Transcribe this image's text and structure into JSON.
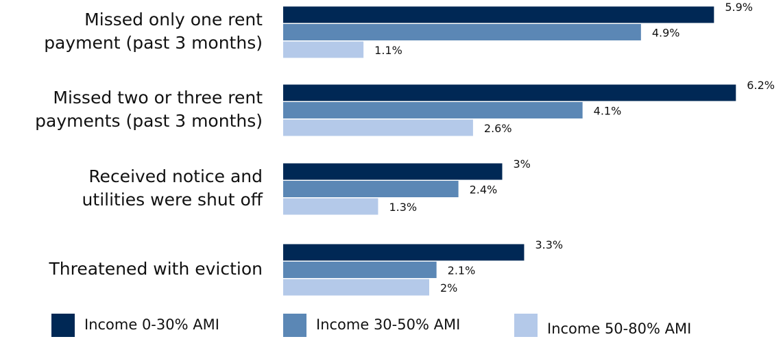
{
  "chart_data": {
    "type": "bar",
    "categories": [
      [
        "Missed only one rent",
        "payment (past 3 months)"
      ],
      [
        "Missed two or three rent",
        "payments (past 3 months)"
      ],
      [
        "Received notice and",
        "utilities were shut off"
      ],
      [
        "Threatened with eviction"
      ]
    ],
    "series": [
      {
        "name": "Income 0-30% AMI",
        "color": "#002855",
        "values": [
          5.9,
          6.2,
          3,
          3.3
        ],
        "value_labels": [
          "5.9%",
          "6.2%",
          "3%",
          "3.3%"
        ]
      },
      {
        "name": "Income 30-50% AMI",
        "color": "#5b87b5",
        "values": [
          4.9,
          4.1,
          2.4,
          2.1
        ],
        "value_labels": [
          "4.9%",
          "4.1%",
          "2.4%",
          "2.1%"
        ]
      },
      {
        "name": "Income 50-80% AMI",
        "color": "#b4c9e9",
        "values": [
          1.1,
          2.6,
          1.3,
          2
        ],
        "value_labels": [
          "1.1%",
          "2.6%",
          "1.3%",
          "2%"
        ]
      }
    ],
    "legend": "bottom"
  }
}
